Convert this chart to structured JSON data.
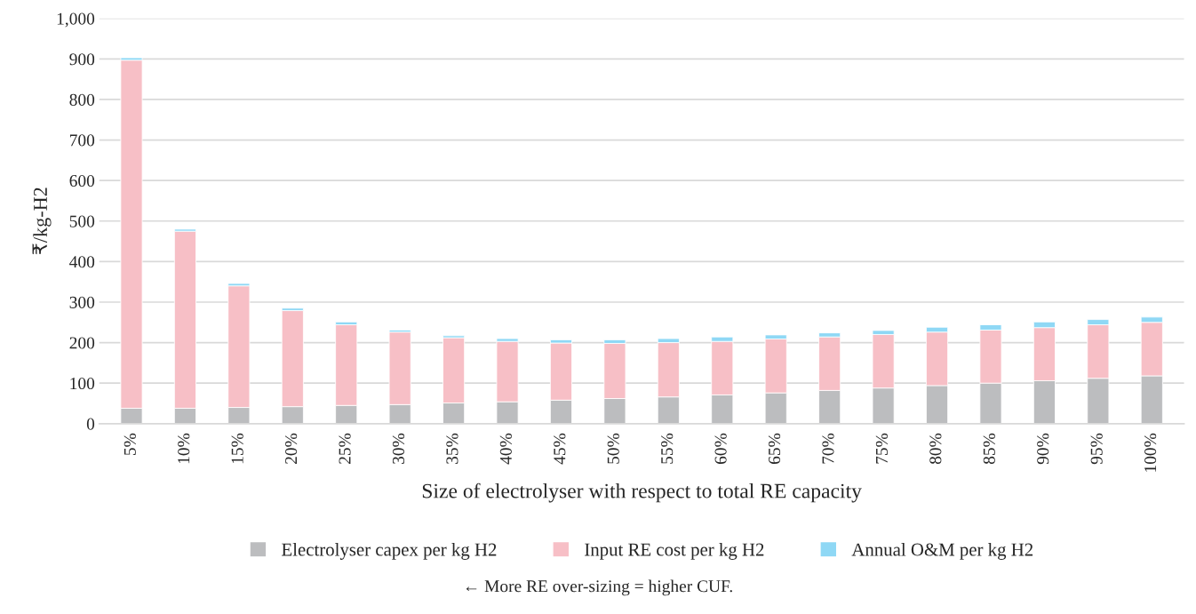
{
  "chart_data": {
    "type": "bar",
    "stacked": true,
    "xlabel": "Size of electrolyser with respect to total RE capacity",
    "ylabel": "₹/kg-H2",
    "categories": [
      "5%",
      "10%",
      "15%",
      "20%",
      "25%",
      "30%",
      "35%",
      "40%",
      "45%",
      "50%",
      "55%",
      "60%",
      "65%",
      "70%",
      "75%",
      "80%",
      "85%",
      "90%",
      "95%",
      "100%"
    ],
    "series": [
      {
        "name": "Electrolyser capex per kg H2",
        "color": "#bcbdbf",
        "values": [
          38,
          38,
          40,
          42,
          45,
          47,
          51,
          54,
          58,
          62,
          66,
          71,
          76,
          82,
          88,
          94,
          100,
          106,
          112,
          118
        ]
      },
      {
        "name": "Input RE cost per kg H2",
        "color": "#f7bfc6",
        "values": [
          859,
          437,
          300,
          237,
          199,
          179,
          161,
          149,
          141,
          136,
          134,
          132,
          133,
          132,
          132,
          132,
          131,
          131,
          132,
          132
        ]
      },
      {
        "name": "Annual O&M per kg H2",
        "color": "#8fd8f5",
        "values": [
          6,
          5,
          6,
          6,
          7,
          5,
          5,
          7,
          8,
          9,
          10,
          11,
          10,
          10,
          10,
          12,
          13,
          14,
          13,
          13
        ]
      }
    ],
    "ylim": [
      0,
      1000
    ],
    "yticks": [
      0,
      100,
      200,
      300,
      400,
      500,
      600,
      700,
      800,
      900,
      {
        "value": 1000,
        "label": "1,000"
      }
    ],
    "grid": "y",
    "legend": "bottom",
    "annotations": [
      "← More RE over-sizing = higher CUF."
    ]
  }
}
